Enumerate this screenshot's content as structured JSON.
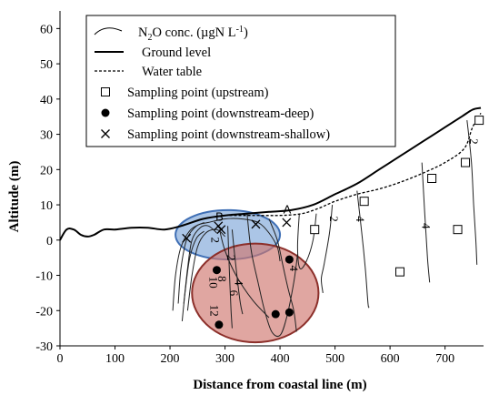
{
  "chart_data": {
    "type": "line",
    "xlabel": "Distance from coastal line (m)",
    "ylabel": "Altitude (m)",
    "xlim": [
      0,
      770
    ],
    "ylim": [
      -30,
      65
    ],
    "xticks": [
      0,
      100,
      200,
      300,
      400,
      500,
      600,
      700
    ],
    "yticks": [
      -30,
      -20,
      -10,
      0,
      10,
      20,
      30,
      40,
      50,
      60
    ],
    "grid": false,
    "legend": {
      "placement": "top",
      "entries": [
        {
          "key": "contour",
          "label_pre": "N",
          "label_sub": "2",
          "label_post": "O conc. (µgN L",
          "label_sup": "-1",
          "label_end": ")"
        },
        {
          "key": "ground",
          "label": "Ground level"
        },
        {
          "key": "water",
          "label": "Water table"
        },
        {
          "key": "upstream",
          "label": "Sampling point (upstream)"
        },
        {
          "key": "deep",
          "label": "Sampling point (downstream-deep)"
        },
        {
          "key": "shallow",
          "label": "Sampling point (downstream-shallow)"
        }
      ]
    },
    "ground_level": {
      "x": [
        0,
        12,
        25,
        38,
        50,
        62,
        80,
        100,
        130,
        160,
        190,
        220,
        260,
        300,
        340,
        380,
        420,
        460,
        500,
        540,
        580,
        620,
        660,
        700,
        730,
        750,
        765
      ],
      "y": [
        0,
        3,
        3,
        1.5,
        1,
        1.5,
        3,
        3,
        3.5,
        3.5,
        3,
        4,
        6,
        7,
        7.5,
        8,
        8.5,
        10,
        13,
        16,
        20,
        24,
        28,
        32,
        35,
        37,
        37.5
      ]
    },
    "water_table": {
      "x": [
        300,
        340,
        400,
        440,
        470,
        500,
        540,
        580,
        620,
        660,
        700,
        735,
        750,
        765
      ],
      "y": [
        7,
        7,
        7,
        7.5,
        9,
        11,
        13,
        14.5,
        16.5,
        19,
        22,
        26,
        32,
        36
      ]
    },
    "sampling_upstream": {
      "x": [
        463,
        553,
        618,
        676,
        723,
        737,
        762
      ],
      "y": [
        3,
        11,
        -9,
        17.5,
        3,
        22,
        34
      ]
    },
    "sampling_downstream_deep": {
      "x": [
        285,
        289,
        392,
        417,
        417
      ],
      "y": [
        -8.5,
        -24,
        -21,
        -5.5,
        -20.5
      ]
    },
    "sampling_downstream_shallow": {
      "x": [
        230,
        288,
        293,
        356,
        412
      ],
      "y": [
        0.5,
        4,
        3,
        4.5,
        5
      ]
    },
    "contours": [
      {
        "label": "4",
        "x": [
          290,
          300,
          320,
          350,
          380
        ],
        "y": [
          3,
          -3,
          -10,
          -17,
          -22
        ]
      },
      {
        "label": "10",
        "x": [
          225,
          232,
          240,
          255,
          270,
          285
        ],
        "y": [
          -18,
          -8,
          0,
          3.5,
          4,
          2
        ]
      },
      {
        "label": "8",
        "x": [
          232,
          240,
          250,
          265,
          285,
          300
        ],
        "y": [
          -20,
          -10,
          -2,
          2,
          3,
          1
        ]
      },
      {
        "label": "12",
        "x": [
          222,
          228,
          236,
          248,
          262
        ],
        "y": [
          -23,
          -14,
          -5,
          0.5,
          2.5
        ]
      },
      {
        "label": "2",
        "x": [
          215,
          220,
          230,
          248,
          270,
          300,
          330,
          360,
          380,
          395,
          400
        ],
        "y": [
          -18,
          -8,
          0,
          4,
          5,
          6,
          6,
          5,
          2,
          -2,
          -6
        ]
      },
      {
        "label": "2",
        "x": [
          205,
          210,
          220,
          238,
          262
        ],
        "y": [
          -20,
          -10,
          -2,
          3,
          5
        ]
      },
      {
        "label": "2",
        "x": [
          340,
          345,
          350,
          360,
          372,
          385,
          400,
          412,
          425,
          432
        ],
        "y": [
          7.5,
          0,
          -5,
          -12,
          -20,
          -26,
          -27,
          -22,
          -12,
          -4
        ]
      },
      {
        "label": "",
        "x": [
          305,
          307,
          309,
          311,
          313
        ],
        "y": [
          4,
          -5,
          -13,
          -20,
          -25
        ]
      },
      {
        "label": "",
        "x": [
          313,
          318,
          323,
          328,
          332
        ],
        "y": [
          3,
          -5,
          -12,
          -18,
          -21
        ]
      },
      {
        "label": "4",
        "x": [
          380,
          395,
          405,
          415,
          425,
          430
        ],
        "y": [
          6,
          0,
          -7,
          -14,
          -20,
          -26
        ]
      },
      {
        "label": "2",
        "x": [
          435,
          432,
          436,
          448,
          460,
          466
        ],
        "y": [
          7.5,
          -2,
          -8,
          -6,
          0,
          7.5
        ]
      },
      {
        "label": "2",
        "x": [
          495,
          490,
          480,
          475,
          478
        ],
        "y": [
          10,
          2,
          -7,
          -11,
          -15
        ]
      },
      {
        "label": "4",
        "x": [
          540,
          548,
          555,
          560,
          562
        ],
        "y": [
          14,
          3,
          -8,
          -18,
          -19
        ]
      },
      {
        "label": "4",
        "x": [
          658,
          663,
          668,
          672
        ],
        "y": [
          22,
          8,
          -5,
          -12
        ]
      },
      {
        "label": "2",
        "x": [
          740,
          748,
          752,
          756,
          758
        ],
        "y": [
          34,
          22,
          10,
          0,
          -7
        ]
      }
    ],
    "contour_labels": [
      {
        "text": "4",
        "x": 325,
        "y": -12
      },
      {
        "text": "2",
        "x": 311,
        "y": -5
      },
      {
        "text": "10",
        "x": 278,
        "y": -12
      },
      {
        "text": "8",
        "x": 294,
        "y": -11
      },
      {
        "text": "12",
        "x": 280,
        "y": -20
      },
      {
        "text": "6",
        "x": 316,
        "y": -15
      },
      {
        "text": "2",
        "x": 282,
        "y": 0
      },
      {
        "text": "4",
        "x": 425,
        "y": -8
      },
      {
        "text": "2",
        "x": 497,
        "y": 6
      },
      {
        "text": "4",
        "x": 545,
        "y": 6
      },
      {
        "text": "4",
        "x": 665,
        "y": 4
      },
      {
        "text": "2",
        "x": 752,
        "y": 28
      }
    ],
    "annotations": [
      {
        "text": "A",
        "x": 413,
        "y": 7.5
      },
      {
        "text": "B",
        "x": 290,
        "y": 5.5
      }
    ],
    "highlight_ellipses": [
      {
        "name": "shallow-zone",
        "cx": 305,
        "cy": 1.5,
        "rx": 95,
        "ry": 7,
        "fill": "#7ea6d8",
        "stroke": "#3f6fb5"
      },
      {
        "name": "deep-zone",
        "cx": 355,
        "cy": -15,
        "rx": 115,
        "ry": 14,
        "fill": "#d0766e",
        "stroke": "#8c2f2a"
      }
    ]
  }
}
